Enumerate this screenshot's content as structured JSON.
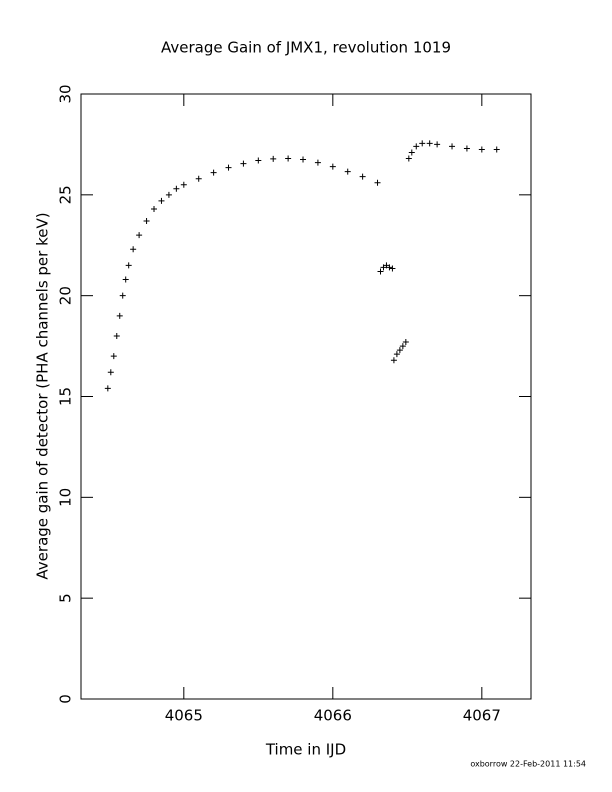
{
  "chart_data": {
    "type": "scatter",
    "title": "Average Gain of JMX1, revolution 1019",
    "xlabel": "Time in IJD",
    "ylabel": "Average gain of detector (PHA channels per keV)",
    "footer": "oxborrow 22-Feb-2011 11:54",
    "x": [
      4064.49,
      4064.51,
      4064.53,
      4064.55,
      4064.57,
      4064.59,
      4064.61,
      4064.63,
      4064.66,
      4064.7,
      4064.75,
      4064.8,
      4064.85,
      4064.9,
      4064.95,
      4065.0,
      4065.1,
      4065.2,
      4065.3,
      4065.4,
      4065.5,
      4065.6,
      4065.7,
      4065.8,
      4065.9,
      4066.0,
      4066.1,
      4066.2,
      4066.3,
      4066.32,
      4066.34,
      4066.36,
      4066.38,
      4066.4,
      4066.41,
      4066.43,
      4066.45,
      4066.47,
      4066.49,
      4066.51,
      4066.53,
      4066.56,
      4066.6,
      4066.65,
      4066.7,
      4066.8,
      4066.9,
      4067.0,
      4067.1
    ],
    "values": [
      15.4,
      16.2,
      17.0,
      18.0,
      19.0,
      20.0,
      20.8,
      21.5,
      22.3,
      23.0,
      23.7,
      24.3,
      24.7,
      25.0,
      25.3,
      25.5,
      25.8,
      26.1,
      26.35,
      26.55,
      26.7,
      26.78,
      26.8,
      26.75,
      26.6,
      26.4,
      26.15,
      25.9,
      25.6,
      21.2,
      21.4,
      21.5,
      21.4,
      21.35,
      16.8,
      17.1,
      17.3,
      17.5,
      17.7,
      26.8,
      27.1,
      27.4,
      27.55,
      27.55,
      27.5,
      27.4,
      27.3,
      27.25,
      27.25
    ],
    "color": "#000000",
    "xlim": [
      4064.31,
      4067.33
    ],
    "ylim": [
      0,
      30
    ],
    "xticks": [
      4065,
      4066,
      4067
    ],
    "yticks": [
      0,
      5,
      10,
      15,
      20,
      25,
      30
    ]
  }
}
